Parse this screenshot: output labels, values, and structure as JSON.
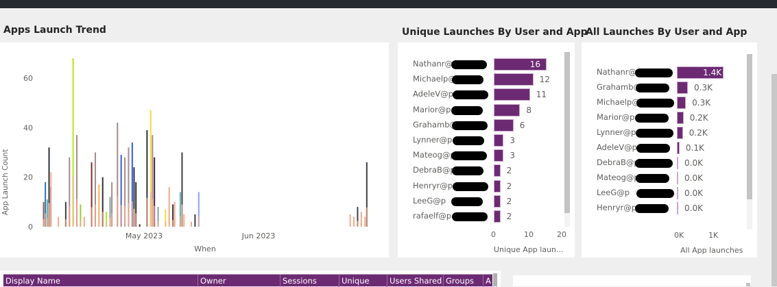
{
  "header": {
    "bg": "#252a31"
  },
  "trend": {
    "title": "Apps Launch Trend",
    "chart_data": {
      "type": "bar",
      "stacked": true,
      "xlabel": "When",
      "ylabel": "App Launch Count",
      "ylim": [
        0,
        70
      ],
      "yticks": [
        "0",
        "20",
        "40",
        "60"
      ],
      "xticks": [
        {
          "label": "May 2023",
          "date": "2023-05-01"
        },
        {
          "label": "Jun 2023",
          "date": "2023-06-01"
        }
      ],
      "bars": [
        {
          "date": "2023-04-04",
          "value": 10,
          "color": "#8f5b4c"
        },
        {
          "date": "2023-04-04",
          "value": 18,
          "color": "#2c6fb8"
        },
        {
          "date": "2023-04-05",
          "value": 11,
          "color": "#5cb8b0"
        },
        {
          "date": "2023-04-05",
          "value": 32,
          "color": "#2b3238"
        },
        {
          "date": "2023-04-05",
          "value": 16,
          "color": "#5a2a4d"
        },
        {
          "date": "2023-04-06",
          "value": 22,
          "color": "#f4b3a0"
        },
        {
          "date": "2023-04-08",
          "value": 4,
          "color": "#f3a98a"
        },
        {
          "date": "2023-04-10",
          "value": 10,
          "color": "#3b3f45"
        },
        {
          "date": "2023-04-11",
          "value": 28,
          "color": "#a58b8a"
        },
        {
          "date": "2023-04-12",
          "value": 68,
          "color": "#b5e61d"
        },
        {
          "date": "2023-04-13",
          "value": 37,
          "color": "#a58b8a"
        },
        {
          "date": "2023-04-14",
          "value": 9,
          "color": "#9acd32"
        },
        {
          "date": "2023-04-15",
          "value": 4,
          "color": "#f3a98a"
        },
        {
          "date": "2023-04-17",
          "value": 26,
          "color": "#7a2b2b"
        },
        {
          "date": "2023-04-18",
          "value": 30,
          "color": "#a58b8a"
        },
        {
          "date": "2023-04-19",
          "value": 17,
          "color": "#f5b04e"
        },
        {
          "date": "2023-04-20",
          "value": 20,
          "color": "#2b3238"
        },
        {
          "date": "2023-04-21",
          "value": 6,
          "color": "#b5e61d"
        },
        {
          "date": "2023-04-22",
          "value": 12,
          "color": "#7aa3ad"
        },
        {
          "date": "2023-04-22",
          "value": 18,
          "color": "#a58b8a"
        },
        {
          "date": "2023-04-24",
          "value": 42,
          "color": "#a58b8a"
        },
        {
          "date": "2023-04-25",
          "value": 29,
          "color": "#3a5fcd"
        },
        {
          "date": "2023-04-26",
          "value": 28,
          "color": "#a58b8a"
        },
        {
          "date": "2023-04-27",
          "value": 32,
          "color": "#a58b8a"
        },
        {
          "date": "2023-04-28",
          "value": 34,
          "color": "#2b5fe0"
        },
        {
          "date": "2023-04-28",
          "value": 24,
          "color": "#2b3238"
        },
        {
          "date": "2023-04-29",
          "value": 18,
          "color": "#2b3238"
        },
        {
          "date": "2023-04-30",
          "value": 1,
          "color": "#2b3238"
        },
        {
          "date": "2023-05-02",
          "value": 39,
          "color": "#2b3238"
        },
        {
          "date": "2023-05-03",
          "value": 47,
          "color": "#f5dc3c"
        },
        {
          "date": "2023-05-03",
          "value": 37,
          "color": "#a58b8a"
        },
        {
          "date": "2023-05-04",
          "value": 28,
          "color": "#4a2045"
        },
        {
          "date": "2023-05-05",
          "value": 8,
          "color": "#7aa3ad"
        },
        {
          "date": "2023-05-07",
          "value": 7,
          "color": "#f5dc3c"
        },
        {
          "date": "2023-05-08",
          "value": 16,
          "color": "#f3a98a"
        },
        {
          "date": "2023-05-09",
          "value": 9,
          "color": "#2b3238"
        },
        {
          "date": "2023-05-09",
          "value": 10,
          "color": "#f3a98a"
        },
        {
          "date": "2023-05-11",
          "value": 14,
          "color": "#5cb8b0"
        },
        {
          "date": "2023-05-11",
          "value": 30,
          "color": "#3b3f45"
        },
        {
          "date": "2023-05-12",
          "value": 5,
          "color": "#f3a98a"
        },
        {
          "date": "2023-05-14",
          "value": 2,
          "color": "#f3a98a"
        },
        {
          "date": "2023-05-15",
          "value": 5,
          "color": "#3b3f45"
        },
        {
          "date": "2023-05-16",
          "value": 14,
          "color": "#8aa0e8"
        },
        {
          "date": "2023-06-26",
          "value": 5,
          "color": "#f3a98a"
        },
        {
          "date": "2023-06-27",
          "value": 4,
          "color": "#f3a98a"
        },
        {
          "date": "2023-06-28",
          "value": 8,
          "color": "#3b3f45"
        },
        {
          "date": "2023-06-29",
          "value": 6,
          "color": "#f3a98a"
        },
        {
          "date": "2023-06-30",
          "value": 4,
          "color": "#f3a98a"
        },
        {
          "date": "2023-06-30",
          "value": 26,
          "color": "#3b3f45"
        }
      ]
    }
  },
  "unique": {
    "title": "Unique Launches By User and App",
    "chart_data": {
      "type": "bar",
      "orientation": "horizontal",
      "xlabel": "Unique App laun...",
      "xlim": [
        0,
        20
      ],
      "xticks": [
        "0",
        "10",
        "20"
      ],
      "categories": [
        "Nathanr@p",
        "Michaelp@p",
        "AdeleV@p",
        "Marior@p",
        "Grahamb@p",
        "Lynner@p",
        "Mateog@p",
        "DebraB@p",
        "Henryr@p",
        "LeeG@p",
        "rafaelf@p"
      ],
      "values": [
        16,
        12,
        11,
        8,
        6,
        3,
        3,
        2,
        2,
        2,
        2
      ],
      "labels": [
        "16",
        "12",
        "11",
        "8",
        "6",
        "3",
        "3",
        "2",
        "2",
        "2",
        "2"
      ],
      "color": "#6c2a73"
    }
  },
  "all": {
    "title": "All Launches By User and App",
    "chart_data": {
      "type": "bar",
      "orientation": "horizontal",
      "xlabel": "All App launches",
      "xlim": [
        0,
        1500
      ],
      "xticks": [
        "0K",
        "1K"
      ],
      "categories": [
        "Nathanr@p",
        "Grahamb@p",
        "Michaelp@p",
        "Marior@p",
        "Lynner@p",
        "AdeleV@p",
        "DebraB@p",
        "Mateog@p",
        "LeeG@p",
        "Henryr@p"
      ],
      "values": [
        1400,
        330,
        270,
        200,
        180,
        80,
        10,
        10,
        10,
        10
      ],
      "labels": [
        "1.4K",
        "0.3K",
        "0.3K",
        "0.2K",
        "0.2K",
        "0.1K",
        "0.0K",
        "0.0K",
        "0.0K",
        "0.0K"
      ],
      "color": "#6c2a73"
    }
  },
  "table": {
    "columns": [
      "Display Name",
      "Owner",
      "Sessions",
      "Unique",
      "Users Shared",
      "Groups",
      "A"
    ],
    "header_color": "#6c2a73"
  }
}
